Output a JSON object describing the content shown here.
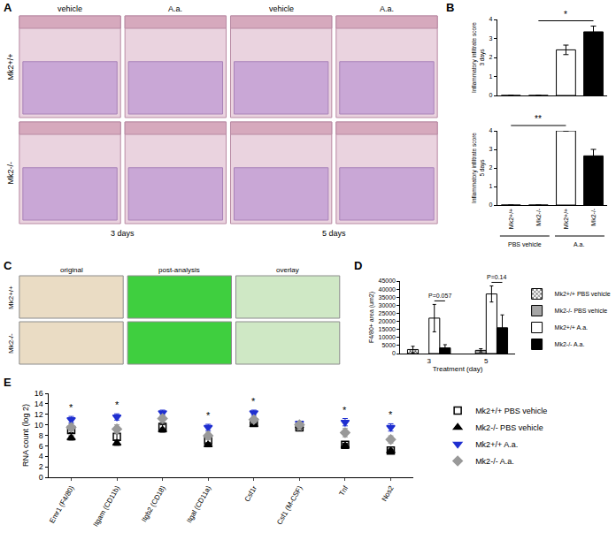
{
  "panels": [
    {
      "panel": "A",
      "columns": [
        "vehicle",
        "A.a.",
        "vehicle",
        "A.a."
      ],
      "rows": [
        "Mk2+/+",
        "Mk2-/-"
      ],
      "groups": [
        "3 days",
        "5 days"
      ]
    },
    {
      "panel": "C",
      "columns": [
        "original",
        "post-analysis",
        "overlay"
      ],
      "rows": [
        "Mk2+/+",
        "Mk2-/-"
      ]
    }
  ],
  "chart_data": [
    {
      "panel": "B",
      "type": "bar",
      "y_label": "Inflammatory infiltrate score 3 days",
      "categories": [
        "Mk2+/+",
        "Mk2-/-",
        "Mk2+/+",
        "Mk2-/-"
      ],
      "values": [
        0,
        0,
        2.4,
        3.35
      ],
      "errors": [
        0,
        0,
        0.25,
        0.3
      ],
      "colors": [
        "#ffffff",
        "#000000",
        "#ffffff",
        "#000000"
      ],
      "ylim": [
        0,
        4
      ],
      "yticks": [
        0,
        1,
        2,
        3,
        4
      ],
      "tick_labels": "y",
      "grid": false,
      "significance": [
        {
          "from": 1,
          "to": 3,
          "text": "*"
        }
      ]
    },
    {
      "panel": "B",
      "type": "bar",
      "y_label": "Inflammatory infiltrate score 5 days",
      "categories": [
        "Mk2+/+",
        "Mk2-/-",
        "Mk2+/+",
        "Mk2-/-"
      ],
      "groups": [
        {
          "label": "PBS vehicle",
          "from": 0,
          "to": 1
        },
        {
          "label": "A.a.",
          "from": 2,
          "to": 3
        }
      ],
      "values": [
        0,
        0,
        4.0,
        2.65
      ],
      "errors": [
        0,
        0,
        0,
        0.35
      ],
      "colors": [
        "#ffffff",
        "#000000",
        "#ffffff",
        "#000000"
      ],
      "ylim": [
        0,
        4
      ],
      "yticks": [
        0,
        1,
        2,
        3,
        4
      ],
      "grid": false,
      "significance": [
        {
          "from": 0,
          "to": 2,
          "text": "**"
        }
      ]
    },
    {
      "panel": "D",
      "type": "bar",
      "x_label": "Treatment (day)",
      "y_label": "F4/80+ area (um2)",
      "categories": [
        "3",
        "5"
      ],
      "ylim": [
        0,
        45000
      ],
      "yticks": [
        0,
        5000,
        10000,
        15000,
        20000,
        25000,
        30000,
        35000,
        40000,
        45000
      ],
      "grid": false,
      "legend": "right",
      "series": [
        {
          "name": "Mk2+/+ PBS vehicle",
          "color": "#ffffff",
          "marker": "checkered",
          "values": [
            2500,
            null
          ],
          "errors": [
            2000,
            null
          ]
        },
        {
          "name": "Mk2-/- PBS vehicle",
          "color": "#a6a6a6",
          "values": [
            null,
            2000
          ],
          "errors": [
            null,
            1000
          ]
        },
        {
          "name": "Mk2+/+ A.a.",
          "color": "#ffffff",
          "values": [
            22000,
            37000
          ],
          "errors": [
            8500,
            5000
          ]
        },
        {
          "name": "Mk2-/- A.a.",
          "color": "#000000",
          "values": [
            3500,
            16000
          ],
          "errors": [
            2000,
            8000
          ]
        }
      ],
      "significance": [
        {
          "category": "3",
          "from": 2,
          "to": 3,
          "text": "P=0.057"
        },
        {
          "category": "5",
          "from": 2,
          "to": 3,
          "text": "P=0.14"
        }
      ]
    },
    {
      "panel": "E",
      "type": "scatter",
      "y_label": "RNA count (log 2)",
      "categories": [
        "Emr1 (F4/80)",
        "Itgam (CD11b)",
        "Itgb2 (CD18)",
        "Itgal (CD11a)",
        "Csf1r",
        "Csf1 (M-CSF)",
        "Tnf",
        "Nos2"
      ],
      "ylim": [
        0,
        16
      ],
      "yticks": [
        0,
        2,
        4,
        6,
        8,
        10,
        12,
        14,
        16
      ],
      "grid": false,
      "legend": "right",
      "series": [
        {
          "name": "Mk2+/+ PBS vehicle",
          "color": "#000000",
          "marker": "square-open",
          "values": [
            9,
            7.7,
            9.6,
            7,
            10.5,
            9.5,
            6.2,
            5.1
          ],
          "errors": [
            0.5,
            0.6,
            0.4,
            0.5,
            0.4,
            0.3,
            0.3,
            0.3
          ]
        },
        {
          "name": "Mk2-/- PBS vehicle",
          "color": "#000000",
          "marker": "triangle-up",
          "values": [
            7.5,
            6.5,
            9,
            6.2,
            10,
            9.8,
            6,
            5
          ],
          "errors": [
            0.4,
            0.4,
            0.4,
            0.4,
            0.3,
            0.3,
            0.3,
            0.3
          ]
        },
        {
          "name": "Mk2+/+ A.a.",
          "color": "#1f2fd0",
          "marker": "triangle-down",
          "values": [
            11,
            11.5,
            12.3,
            9.5,
            12.3,
            10.3,
            10.5,
            9.5
          ],
          "errors": [
            0.6,
            0.6,
            0.5,
            0.6,
            0.5,
            0.4,
            0.7,
            0.7
          ]
        },
        {
          "name": "Mk2-/- A.a.",
          "color": "#999999",
          "marker": "diamond",
          "values": [
            9.5,
            9.2,
            11.2,
            7.9,
            11,
            10,
            8.5,
            7.2
          ],
          "errors": [
            0.7,
            0.8,
            0.6,
            0.7,
            0.5,
            0.4,
            0.8,
            0.7
          ]
        }
      ],
      "annotations": [
        {
          "category": "Emr1 (F4/80)",
          "text": "*"
        },
        {
          "category": "Itgam (CD11b)",
          "text": "*"
        },
        {
          "category": "Itgal (CD11a)",
          "text": "*"
        },
        {
          "category": "Csf1r",
          "text": "*"
        },
        {
          "category": "Tnf",
          "text": "*"
        },
        {
          "category": "Nos2",
          "text": "*"
        }
      ]
    }
  ]
}
